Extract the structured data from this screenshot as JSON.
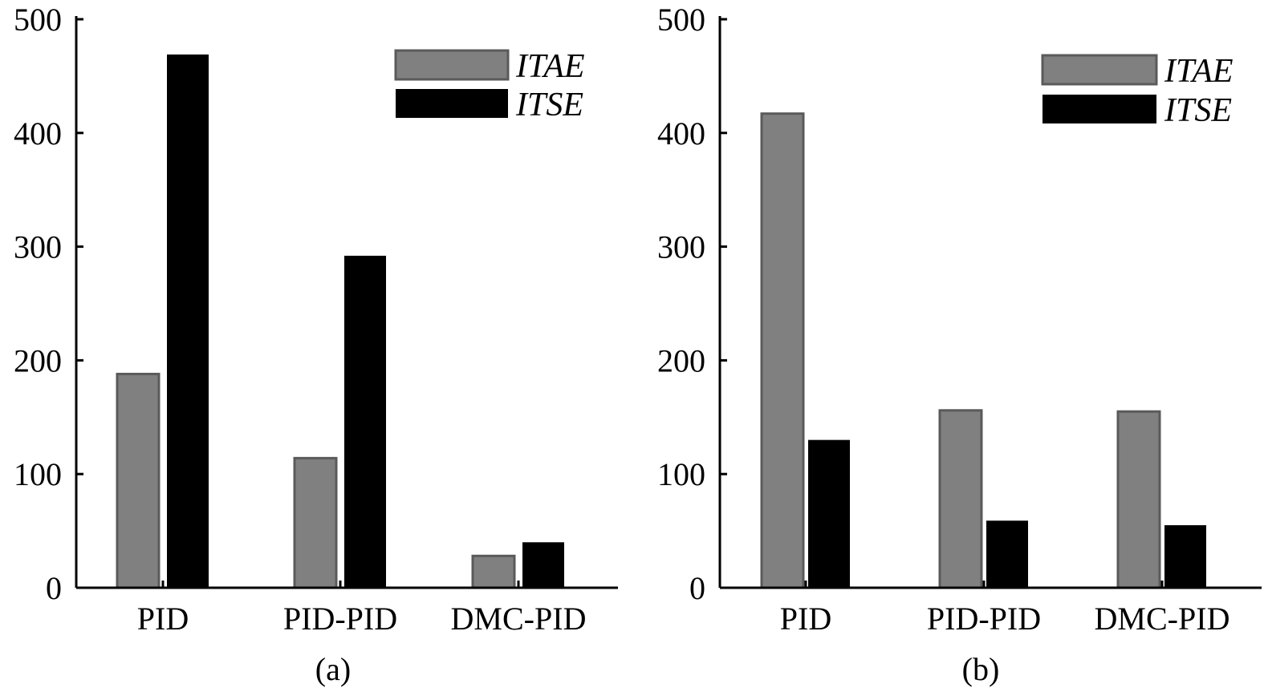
{
  "colors": {
    "itae_fill": "#808080",
    "itae_stroke": "#5a5a5a",
    "itse_fill": "#000000",
    "axis": "#000000"
  },
  "chart_data": [
    {
      "type": "bar",
      "panel_label": "(a)",
      "categories": [
        "PID",
        "PID-PID",
        "DMC-PID"
      ],
      "series": [
        {
          "name": "ITAE",
          "values": [
            188,
            114,
            28
          ]
        },
        {
          "name": "ITSE",
          "values": [
            469,
            292,
            40
          ]
        }
      ],
      "ylim": [
        0,
        500
      ],
      "yticks": [
        0,
        100,
        200,
        300,
        400,
        500
      ],
      "ytick_labels": [
        "0",
        "100",
        "200",
        "300",
        "400",
        "500"
      ],
      "xlabel": "",
      "ylabel": "",
      "legend": {
        "placement": "top-right",
        "labels": [
          "ITAE",
          "ITSE"
        ]
      },
      "grid": false
    },
    {
      "type": "bar",
      "panel_label": "(b)",
      "categories": [
        "PID",
        "PID-PID",
        "DMC-PID"
      ],
      "series": [
        {
          "name": "ITAE",
          "values": [
            417,
            156,
            155
          ]
        },
        {
          "name": "ITSE",
          "values": [
            130,
            59,
            55
          ]
        }
      ],
      "ylim": [
        0,
        500
      ],
      "yticks": [
        0,
        100,
        200,
        300,
        400,
        500
      ],
      "ytick_labels": [
        "0",
        "100",
        "200",
        "300",
        "400",
        "500"
      ],
      "xlabel": "",
      "ylabel": "",
      "legend": {
        "placement": "top-right",
        "labels": [
          "ITAE",
          "ITSE"
        ]
      },
      "grid": false
    }
  ]
}
